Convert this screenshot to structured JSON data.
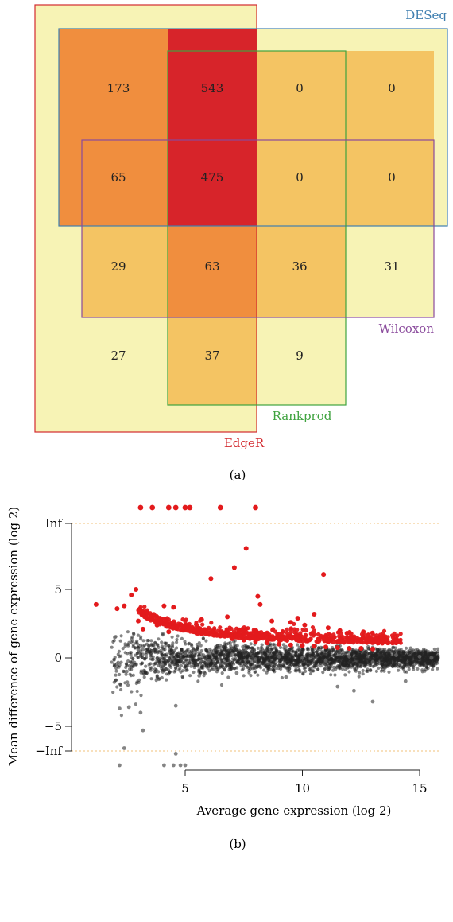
{
  "panels": {
    "a": {
      "label": "(a)",
      "sets": {
        "edger": {
          "name": "EdgeR",
          "color": "#d32a2f"
        },
        "deseq": {
          "name": "DESeq",
          "color": "#3f7fb0"
        },
        "rankprod": {
          "name": "Rankprod",
          "color": "#3fa33f"
        },
        "wilcoxon": {
          "name": "Wilcoxon",
          "color": "#8a4a9c"
        }
      },
      "grid_rows": [
        [
          173,
          543,
          0,
          0
        ],
        [
          65,
          475,
          0,
          0
        ],
        [
          29,
          63,
          36,
          31
        ],
        [
          27,
          37,
          9,
          null
        ]
      ],
      "heat_colors": {
        "pale": "#f7f3b5",
        "low": "#f4c463",
        "mid": "#f08e3e",
        "high": "#d7242a"
      }
    },
    "b": {
      "label": "(b)",
      "xlabel": "Average gene expression (log 2)",
      "ylabel": "Mean difference of gene expression (log 2)",
      "x_ticks": [
        "5",
        "10",
        "15"
      ],
      "y_ticks": [
        "Inf",
        "5",
        "0",
        "−5",
        "−Inf"
      ]
    }
  },
  "chart_data": [
    {
      "type": "table",
      "title": "",
      "sets": [
        "EdgeR",
        "DESeq",
        "Rankprod",
        "Wilcoxon"
      ],
      "rows": [
        [
          173,
          543,
          0,
          0
        ],
        [
          65,
          475,
          0,
          0
        ],
        [
          29,
          63,
          36,
          31
        ],
        [
          27,
          37,
          9,
          null
        ]
      ]
    },
    {
      "type": "scatter",
      "xlabel": "Average gene expression (log 2)",
      "ylabel": "Mean difference of gene expression (log 2)",
      "xlim": [
        0,
        16
      ],
      "x_ticks": [
        5,
        10,
        15
      ],
      "y_ticks": [
        "Inf",
        5,
        0,
        -5,
        "-Inf"
      ],
      "series": [
        {
          "color": "#e31a1c",
          "points": [
            [
              1.2,
              3.9
            ],
            [
              2.1,
              3.6
            ],
            [
              2.4,
              3.8
            ],
            [
              2.7,
              4.6
            ],
            [
              2.9,
              5.0
            ],
            [
              4.1,
              3.8
            ],
            [
              4.5,
              3.7
            ],
            [
              3.4,
              3.3
            ],
            [
              3.0,
              2.7
            ],
            [
              3.8,
              2.4
            ],
            [
              6.1,
              5.8
            ],
            [
              7.6,
              8.0
            ],
            [
              7.1,
              6.6
            ],
            [
              8.1,
              4.5
            ],
            [
              8.2,
              3.9
            ],
            [
              10.9,
              6.1
            ],
            [
              10.5,
              3.2
            ],
            [
              8.7,
              2.7
            ],
            [
              9.5,
              2.6
            ],
            [
              10.1,
              2.4
            ],
            [
              11.6,
              2.0
            ],
            [
              11.9,
              1.8
            ],
            [
              12.2,
              1.4
            ],
            [
              13.0,
              1.2
            ],
            [
              13.5,
              1.3
            ],
            [
              14.0,
              1.1
            ],
            [
              4.9,
              2.3
            ],
            [
              5.5,
              2.0
            ],
            [
              6.0,
              1.8
            ],
            [
              6.5,
              1.6
            ],
            [
              7.0,
              1.4
            ],
            [
              7.5,
              1.3
            ],
            [
              8.0,
              1.2
            ],
            [
              8.5,
              1.1
            ],
            [
              9.0,
              1.0
            ],
            [
              9.5,
              0.95
            ],
            [
              10.0,
              0.9
            ],
            [
              10.5,
              0.85
            ],
            [
              11.0,
              0.8
            ],
            [
              11.5,
              0.75
            ],
            [
              12.0,
              0.7
            ],
            [
              12.5,
              0.7
            ],
            [
              13.0,
              0.65
            ],
            [
              6.8,
              3.0
            ],
            [
              5.7,
              2.8
            ],
            [
              9.8,
              2.9
            ],
            [
              12.6,
              1.9
            ],
            [
              3.2,
              2.1
            ],
            [
              4.3,
              1.9
            ],
            [
              11.1,
              2.2
            ]
          ]
        },
        {
          "color": "#222222",
          "points": [
            [
              2.0,
              1.5
            ],
            [
              2.5,
              -1.0
            ],
            [
              3.0,
              0.6
            ],
            [
              4.0,
              -0.5
            ],
            [
              5.0,
              0.3
            ],
            [
              6.0,
              -0.2
            ],
            [
              7.0,
              0.2
            ],
            [
              8.0,
              -0.1
            ],
            [
              9.0,
              0.1
            ],
            [
              10.0,
              0.0
            ],
            [
              11.0,
              -0.2
            ],
            [
              12.0,
              0.1
            ],
            [
              13.0,
              -0.3
            ],
            [
              14.0,
              0.2
            ],
            [
              15.0,
              0.1
            ],
            [
              15.5,
              0.0
            ],
            [
              2.2,
              -3.7
            ],
            [
              2.6,
              -3.6
            ],
            [
              3.1,
              -4.0
            ],
            [
              4.6,
              -3.5
            ],
            [
              4.6,
              -7.0
            ],
            [
              2.4,
              -6.6
            ],
            [
              3.2,
              -5.3
            ],
            [
              13.0,
              -3.2
            ],
            [
              12.2,
              -2.4
            ],
            [
              14.4,
              -1.7
            ],
            [
              11.5,
              -2.1
            ],
            [
              9.3,
              -1.4
            ],
            [
              7.2,
              -1.1
            ],
            [
              5.6,
              -1.3
            ]
          ]
        }
      ]
    }
  ]
}
